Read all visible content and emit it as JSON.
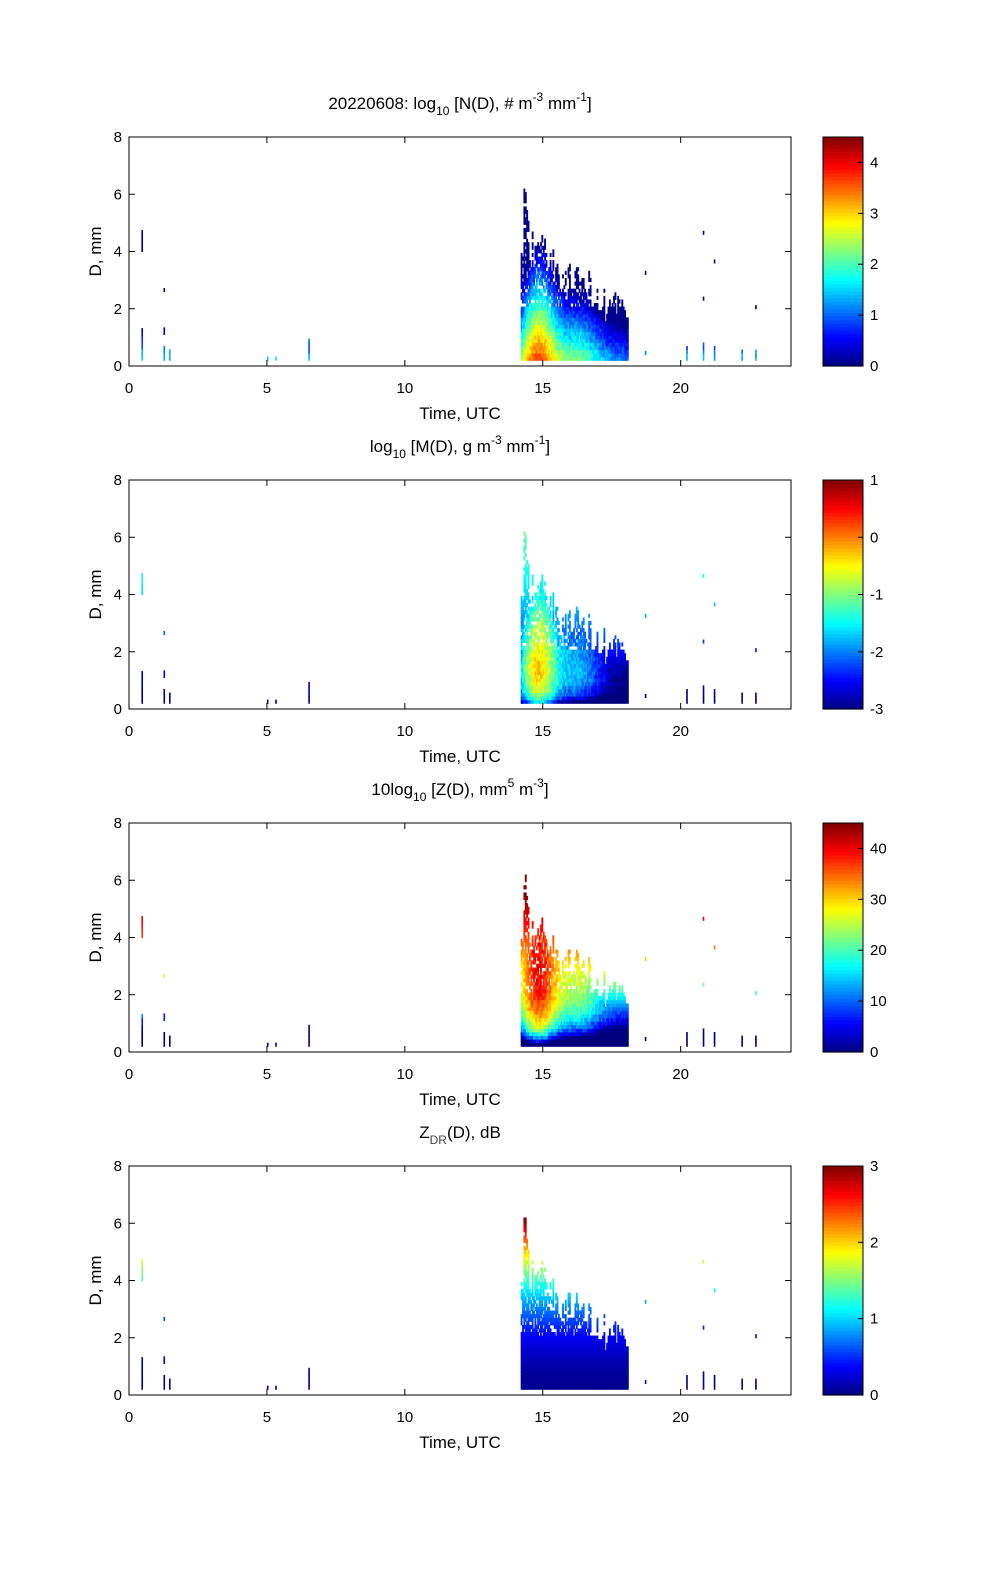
{
  "chart_data": [
    {
      "type": "heatmap",
      "title_parts": [
        "20220608: log",
        "10",
        " [N(D), # m",
        "-3",
        " mm",
        "-1",
        "]"
      ],
      "xlabel": "Time, UTC",
      "ylabel": "D, mm",
      "xlim": [
        0,
        24
      ],
      "ylim": [
        0,
        8
      ],
      "xticks": [
        0,
        5,
        10,
        15,
        20
      ],
      "yticks": [
        0,
        2,
        4,
        6,
        8
      ],
      "clim": [
        0,
        4.5
      ],
      "cticks": [
        0,
        1,
        2,
        3,
        4
      ],
      "quantity": "logN"
    },
    {
      "type": "heatmap",
      "title_parts": [
        "log",
        "10",
        " [M(D), g m",
        "-3",
        " mm",
        "-1",
        "]"
      ],
      "xlabel": "Time, UTC",
      "ylabel": "D, mm",
      "xlim": [
        0,
        24
      ],
      "ylim": [
        0,
        8
      ],
      "xticks": [
        0,
        5,
        10,
        15,
        20
      ],
      "yticks": [
        0,
        2,
        4,
        6,
        8
      ],
      "clim": [
        -3,
        1
      ],
      "cticks": [
        -3,
        -2,
        -1,
        0,
        1
      ],
      "quantity": "logM"
    },
    {
      "type": "heatmap",
      "title_parts": [
        "10log",
        "10",
        " [Z(D),  mm",
        "5",
        " m",
        "-3",
        "]"
      ],
      "xlabel": "Time, UTC",
      "ylabel": "D, mm",
      "xlim": [
        0,
        24
      ],
      "ylim": [
        0,
        8
      ],
      "xticks": [
        0,
        5,
        10,
        15,
        20
      ],
      "yticks": [
        0,
        2,
        4,
        6,
        8
      ],
      "clim": [
        0,
        45
      ],
      "cticks": [
        0,
        10,
        20,
        30,
        40
      ],
      "quantity": "Z"
    },
    {
      "type": "heatmap",
      "title_parts": [
        "Z",
        "DR",
        "(D), dB"
      ],
      "xlabel": "Time, UTC",
      "ylabel": "D, mm",
      "xlim": [
        0,
        24
      ],
      "ylim": [
        0,
        8
      ],
      "xticks": [
        0,
        5,
        10,
        15,
        20
      ],
      "yticks": [
        0,
        2,
        4,
        6,
        8
      ],
      "clim": [
        0,
        3
      ],
      "cticks": [
        0,
        1,
        2,
        3
      ],
      "quantity": "ZDR"
    }
  ],
  "storm": {
    "t_start": 14.2,
    "t_end": 18.1,
    "t_peak": 14.8,
    "d_max": 6.1
  },
  "sparse_events": [
    [
      0.45,
      0.2,
      1.3
    ],
    [
      0.45,
      4.0,
      4.7
    ],
    [
      1.25,
      0.2,
      0.7
    ],
    [
      1.25,
      1.1,
      1.3
    ],
    [
      1.25,
      2.6,
      2.7
    ],
    [
      1.45,
      0.2,
      0.5
    ],
    [
      5.0,
      0.2,
      0.3
    ],
    [
      5.3,
      0.2,
      0.3
    ],
    [
      6.5,
      0.2,
      0.9
    ],
    [
      18.7,
      0.4,
      0.5
    ],
    [
      18.7,
      3.2,
      3.3
    ],
    [
      20.2,
      0.2,
      0.6
    ],
    [
      20.8,
      0.2,
      0.8
    ],
    [
      20.8,
      4.6,
      4.7
    ],
    [
      20.8,
      2.3,
      2.4
    ],
    [
      21.2,
      0.2,
      0.7
    ],
    [
      21.2,
      3.6,
      3.7
    ],
    [
      22.2,
      0.2,
      0.5
    ],
    [
      22.7,
      0.2,
      0.5
    ],
    [
      22.7,
      2.0,
      2.1
    ]
  ]
}
